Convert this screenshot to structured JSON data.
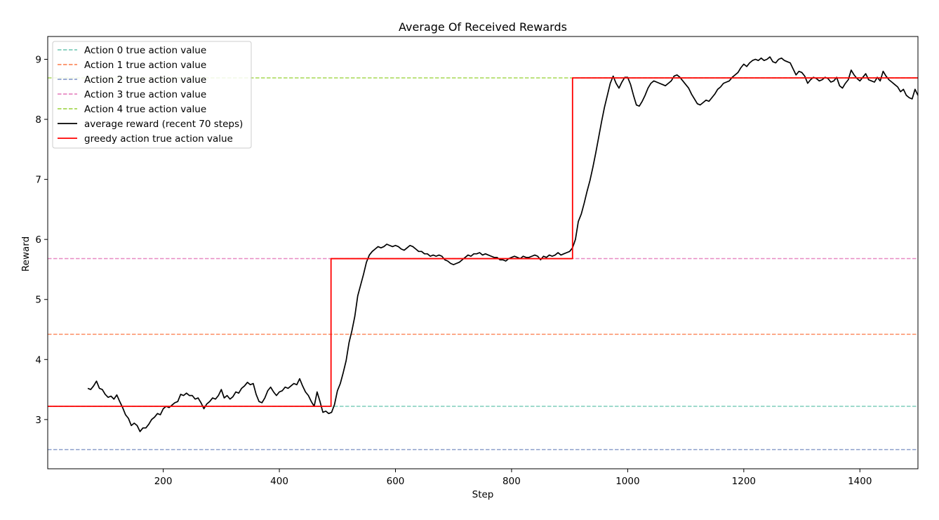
{
  "chart_data": {
    "type": "line",
    "title": "Average Of Received Rewards",
    "xlabel": "Step",
    "ylabel": "Reward",
    "xlim": [
      1,
      1500
    ],
    "ylim": [
      2.18,
      9.38
    ],
    "xticks": [
      200,
      400,
      600,
      800,
      1000,
      1200,
      1400
    ],
    "yticks": [
      3,
      4,
      5,
      6,
      7,
      8,
      9
    ],
    "grid": false,
    "legend_position": "upper-left",
    "series": [
      {
        "name": "Action 0 true action value",
        "kind": "hline",
        "y": 3.22,
        "color": "#7fcdbb",
        "style": "dashed"
      },
      {
        "name": "Action 1 true action value",
        "kind": "hline",
        "y": 4.42,
        "color": "#fc8d62",
        "style": "dashed"
      },
      {
        "name": "Action 2 true action value",
        "kind": "hline",
        "y": 2.5,
        "color": "#8da0cb",
        "style": "dashed"
      },
      {
        "name": "Action 3 true action value",
        "kind": "hline",
        "y": 5.68,
        "color": "#e78ac3",
        "style": "dashed"
      },
      {
        "name": "Action 4 true action value",
        "kind": "hline",
        "y": 8.69,
        "color": "#a6d854",
        "style": "dashed"
      },
      {
        "name": "average reward (recent 70 steps)",
        "kind": "line",
        "color": "#000000",
        "style": "solid",
        "points": [
          [
            70,
            3.52
          ],
          [
            75,
            3.5
          ],
          [
            80,
            3.56
          ],
          [
            85,
            3.64
          ],
          [
            90,
            3.52
          ],
          [
            95,
            3.5
          ],
          [
            100,
            3.42
          ],
          [
            105,
            3.37
          ],
          [
            110,
            3.39
          ],
          [
            115,
            3.34
          ],
          [
            120,
            3.41
          ],
          [
            125,
            3.3
          ],
          [
            130,
            3.2
          ],
          [
            135,
            3.08
          ],
          [
            140,
            3.02
          ],
          [
            145,
            2.9
          ],
          [
            150,
            2.94
          ],
          [
            155,
            2.9
          ],
          [
            160,
            2.8
          ],
          [
            165,
            2.86
          ],
          [
            170,
            2.86
          ],
          [
            175,
            2.92
          ],
          [
            180,
            3.0
          ],
          [
            185,
            3.04
          ],
          [
            190,
            3.1
          ],
          [
            195,
            3.08
          ],
          [
            200,
            3.18
          ],
          [
            205,
            3.22
          ],
          [
            210,
            3.2
          ],
          [
            215,
            3.24
          ],
          [
            220,
            3.28
          ],
          [
            225,
            3.3
          ],
          [
            230,
            3.42
          ],
          [
            235,
            3.4
          ],
          [
            240,
            3.44
          ],
          [
            245,
            3.4
          ],
          [
            250,
            3.4
          ],
          [
            255,
            3.34
          ],
          [
            260,
            3.36
          ],
          [
            265,
            3.28
          ],
          [
            270,
            3.18
          ],
          [
            275,
            3.26
          ],
          [
            280,
            3.3
          ],
          [
            285,
            3.36
          ],
          [
            290,
            3.34
          ],
          [
            295,
            3.4
          ],
          [
            300,
            3.5
          ],
          [
            305,
            3.36
          ],
          [
            310,
            3.4
          ],
          [
            315,
            3.34
          ],
          [
            320,
            3.38
          ],
          [
            325,
            3.46
          ],
          [
            330,
            3.44
          ],
          [
            335,
            3.52
          ],
          [
            340,
            3.56
          ],
          [
            345,
            3.62
          ],
          [
            350,
            3.58
          ],
          [
            355,
            3.6
          ],
          [
            360,
            3.42
          ],
          [
            365,
            3.3
          ],
          [
            370,
            3.28
          ],
          [
            375,
            3.36
          ],
          [
            380,
            3.48
          ],
          [
            385,
            3.54
          ],
          [
            390,
            3.46
          ],
          [
            395,
            3.4
          ],
          [
            400,
            3.46
          ],
          [
            405,
            3.48
          ],
          [
            410,
            3.54
          ],
          [
            415,
            3.52
          ],
          [
            420,
            3.56
          ],
          [
            425,
            3.6
          ],
          [
            430,
            3.58
          ],
          [
            435,
            3.68
          ],
          [
            440,
            3.56
          ],
          [
            445,
            3.46
          ],
          [
            450,
            3.4
          ],
          [
            455,
            3.3
          ],
          [
            460,
            3.22
          ],
          [
            465,
            3.46
          ],
          [
            470,
            3.3
          ],
          [
            475,
            3.12
          ],
          [
            480,
            3.14
          ],
          [
            485,
            3.1
          ],
          [
            490,
            3.12
          ],
          [
            495,
            3.25
          ],
          [
            500,
            3.48
          ],
          [
            505,
            3.6
          ],
          [
            510,
            3.78
          ],
          [
            515,
            3.98
          ],
          [
            520,
            4.28
          ],
          [
            525,
            4.48
          ],
          [
            530,
            4.72
          ],
          [
            535,
            5.06
          ],
          [
            540,
            5.24
          ],
          [
            545,
            5.42
          ],
          [
            550,
            5.62
          ],
          [
            555,
            5.74
          ],
          [
            560,
            5.8
          ],
          [
            565,
            5.84
          ],
          [
            570,
            5.88
          ],
          [
            575,
            5.86
          ],
          [
            580,
            5.88
          ],
          [
            585,
            5.92
          ],
          [
            590,
            5.9
          ],
          [
            595,
            5.88
          ],
          [
            600,
            5.9
          ],
          [
            605,
            5.88
          ],
          [
            610,
            5.84
          ],
          [
            615,
            5.82
          ],
          [
            620,
            5.86
          ],
          [
            625,
            5.9
          ],
          [
            630,
            5.88
          ],
          [
            635,
            5.84
          ],
          [
            640,
            5.8
          ],
          [
            645,
            5.8
          ],
          [
            650,
            5.76
          ],
          [
            655,
            5.76
          ],
          [
            660,
            5.72
          ],
          [
            665,
            5.74
          ],
          [
            670,
            5.72
          ],
          [
            675,
            5.74
          ],
          [
            680,
            5.72
          ],
          [
            685,
            5.66
          ],
          [
            690,
            5.64
          ],
          [
            695,
            5.6
          ],
          [
            700,
            5.58
          ],
          [
            705,
            5.6
          ],
          [
            710,
            5.62
          ],
          [
            715,
            5.66
          ],
          [
            720,
            5.7
          ],
          [
            725,
            5.74
          ],
          [
            730,
            5.72
          ],
          [
            735,
            5.76
          ],
          [
            740,
            5.76
          ],
          [
            745,
            5.78
          ],
          [
            750,
            5.74
          ],
          [
            755,
            5.76
          ],
          [
            760,
            5.74
          ],
          [
            765,
            5.72
          ],
          [
            770,
            5.7
          ],
          [
            775,
            5.7
          ],
          [
            780,
            5.66
          ],
          [
            785,
            5.66
          ],
          [
            790,
            5.64
          ],
          [
            795,
            5.68
          ],
          [
            800,
            5.7
          ],
          [
            805,
            5.72
          ],
          [
            810,
            5.7
          ],
          [
            815,
            5.68
          ],
          [
            820,
            5.72
          ],
          [
            825,
            5.7
          ],
          [
            830,
            5.7
          ],
          [
            835,
            5.72
          ],
          [
            840,
            5.74
          ],
          [
            845,
            5.72
          ],
          [
            850,
            5.66
          ],
          [
            855,
            5.72
          ],
          [
            860,
            5.7
          ],
          [
            865,
            5.74
          ],
          [
            870,
            5.72
          ],
          [
            875,
            5.74
          ],
          [
            880,
            5.78
          ],
          [
            885,
            5.74
          ],
          [
            890,
            5.76
          ],
          [
            895,
            5.78
          ],
          [
            900,
            5.8
          ],
          [
            905,
            5.86
          ],
          [
            910,
            6.0
          ],
          [
            915,
            6.3
          ],
          [
            920,
            6.42
          ],
          [
            925,
            6.6
          ],
          [
            930,
            6.8
          ],
          [
            935,
            6.98
          ],
          [
            940,
            7.2
          ],
          [
            945,
            7.44
          ],
          [
            950,
            7.7
          ],
          [
            955,
            7.96
          ],
          [
            960,
            8.2
          ],
          [
            965,
            8.4
          ],
          [
            970,
            8.6
          ],
          [
            975,
            8.72
          ],
          [
            980,
            8.6
          ],
          [
            985,
            8.52
          ],
          [
            990,
            8.62
          ],
          [
            995,
            8.7
          ],
          [
            1000,
            8.7
          ],
          [
            1005,
            8.58
          ],
          [
            1010,
            8.4
          ],
          [
            1015,
            8.24
          ],
          [
            1020,
            8.22
          ],
          [
            1025,
            8.3
          ],
          [
            1030,
            8.4
          ],
          [
            1035,
            8.52
          ],
          [
            1040,
            8.6
          ],
          [
            1045,
            8.64
          ],
          [
            1050,
            8.62
          ],
          [
            1055,
            8.6
          ],
          [
            1060,
            8.58
          ],
          [
            1065,
            8.56
          ],
          [
            1070,
            8.6
          ],
          [
            1075,
            8.64
          ],
          [
            1080,
            8.72
          ],
          [
            1085,
            8.74
          ],
          [
            1090,
            8.7
          ],
          [
            1095,
            8.64
          ],
          [
            1100,
            8.58
          ],
          [
            1105,
            8.52
          ],
          [
            1110,
            8.42
          ],
          [
            1115,
            8.34
          ],
          [
            1120,
            8.26
          ],
          [
            1125,
            8.24
          ],
          [
            1130,
            8.28
          ],
          [
            1135,
            8.32
          ],
          [
            1140,
            8.3
          ],
          [
            1145,
            8.36
          ],
          [
            1150,
            8.42
          ],
          [
            1155,
            8.5
          ],
          [
            1160,
            8.54
          ],
          [
            1165,
            8.6
          ],
          [
            1170,
            8.62
          ],
          [
            1175,
            8.64
          ],
          [
            1180,
            8.7
          ],
          [
            1185,
            8.74
          ],
          [
            1190,
            8.78
          ],
          [
            1195,
            8.86
          ],
          [
            1200,
            8.92
          ],
          [
            1205,
            8.88
          ],
          [
            1210,
            8.94
          ],
          [
            1215,
            8.98
          ],
          [
            1220,
            9.0
          ],
          [
            1225,
            8.98
          ],
          [
            1230,
            9.02
          ],
          [
            1235,
            8.98
          ],
          [
            1240,
            9.0
          ],
          [
            1245,
            9.04
          ],
          [
            1250,
            8.96
          ],
          [
            1255,
            8.94
          ],
          [
            1260,
            9.0
          ],
          [
            1265,
            9.02
          ],
          [
            1270,
            8.98
          ],
          [
            1275,
            8.96
          ],
          [
            1280,
            8.94
          ],
          [
            1285,
            8.84
          ],
          [
            1290,
            8.74
          ],
          [
            1295,
            8.8
          ],
          [
            1300,
            8.78
          ],
          [
            1305,
            8.72
          ],
          [
            1310,
            8.6
          ],
          [
            1315,
            8.66
          ],
          [
            1320,
            8.7
          ],
          [
            1325,
            8.68
          ],
          [
            1330,
            8.64
          ],
          [
            1335,
            8.66
          ],
          [
            1340,
            8.7
          ],
          [
            1345,
            8.68
          ],
          [
            1350,
            8.62
          ],
          [
            1355,
            8.64
          ],
          [
            1360,
            8.7
          ],
          [
            1365,
            8.56
          ],
          [
            1370,
            8.52
          ],
          [
            1375,
            8.6
          ],
          [
            1380,
            8.66
          ],
          [
            1385,
            8.82
          ],
          [
            1390,
            8.74
          ],
          [
            1395,
            8.68
          ],
          [
            1400,
            8.64
          ],
          [
            1405,
            8.7
          ],
          [
            1410,
            8.76
          ],
          [
            1415,
            8.66
          ],
          [
            1420,
            8.64
          ],
          [
            1425,
            8.62
          ],
          [
            1430,
            8.7
          ],
          [
            1435,
            8.64
          ],
          [
            1440,
            8.8
          ],
          [
            1445,
            8.72
          ],
          [
            1450,
            8.66
          ],
          [
            1455,
            8.62
          ],
          [
            1460,
            8.58
          ],
          [
            1465,
            8.54
          ],
          [
            1470,
            8.46
          ],
          [
            1475,
            8.5
          ],
          [
            1480,
            8.4
          ],
          [
            1485,
            8.36
          ],
          [
            1490,
            8.34
          ],
          [
            1495,
            8.5
          ],
          [
            1500,
            8.4
          ]
        ]
      },
      {
        "name": "greedy action true action value",
        "kind": "step",
        "color": "#ff0000",
        "style": "solid",
        "points": [
          [
            1,
            3.22
          ],
          [
            489,
            3.22
          ],
          [
            489,
            5.68
          ],
          [
            905,
            5.68
          ],
          [
            905,
            8.69
          ],
          [
            1500,
            8.69
          ]
        ]
      }
    ]
  }
}
